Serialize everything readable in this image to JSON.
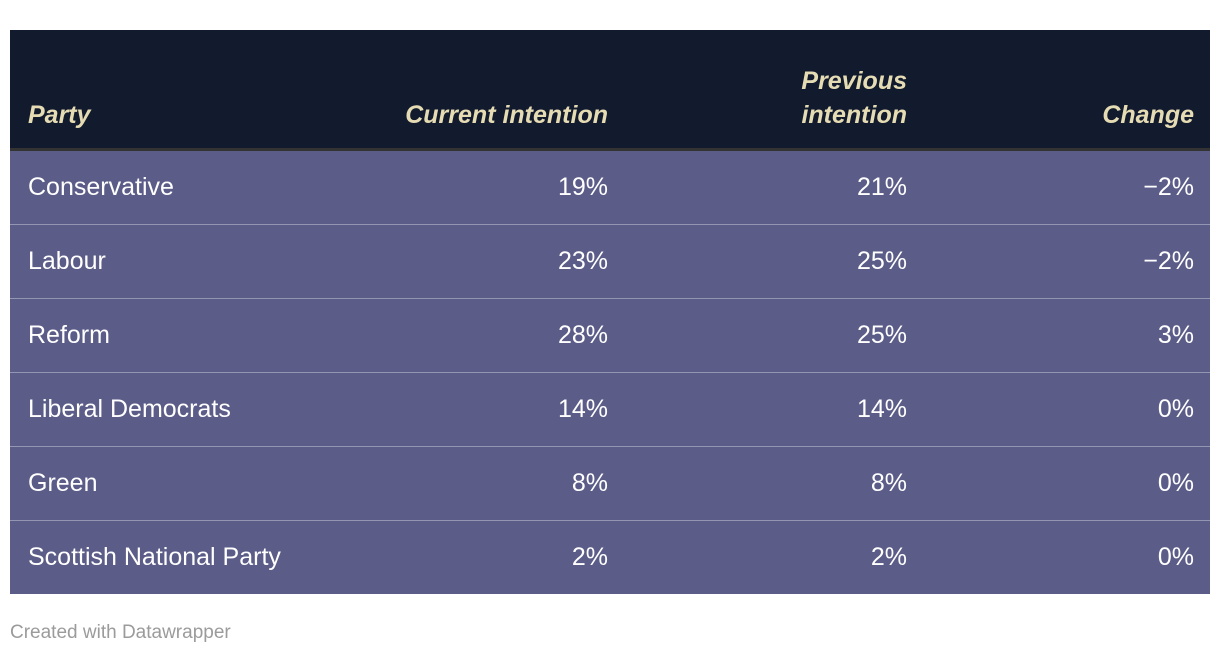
{
  "chart_data": {
    "type": "table",
    "columns": [
      "Party",
      "Current intention",
      "Previous intention",
      "Change"
    ],
    "column_align": [
      "left",
      "right",
      "right",
      "right"
    ],
    "rows": [
      [
        "Conservative",
        "19%",
        "21%",
        "−2%"
      ],
      [
        "Labour",
        "23%",
        "25%",
        "−2%"
      ],
      [
        "Reform",
        "28%",
        "25%",
        "3%"
      ],
      [
        "Liberal Democrats",
        "14%",
        "14%",
        "0%"
      ],
      [
        "Green",
        "8%",
        "8%",
        "0%"
      ],
      [
        "Scottish National Party",
        "2%",
        "2%",
        "0%"
      ]
    ]
  },
  "footer": {
    "credit": "Created with Datawrapper"
  },
  "colors": {
    "page_bg": "#ffffff",
    "header_bg": "#121a2e",
    "header_text": "#e6dcb4",
    "header_border": "#333333",
    "row_bg": "#5b5c88",
    "row_text": "#ffffff",
    "row_divider": "rgba(255,255,255,0.35)",
    "credit_text": "#9b9b9b"
  }
}
